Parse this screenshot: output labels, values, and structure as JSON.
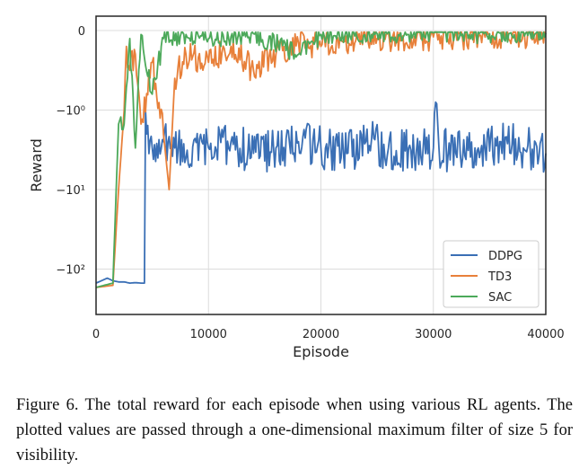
{
  "chart_data": {
    "type": "line",
    "xlabel": "Episode",
    "ylabel": "Reward",
    "xlim": [
      0,
      40000
    ],
    "y_scale": "symlog",
    "y_ticks": [
      "0",
      "−10⁰",
      "−10¹",
      "−10²"
    ],
    "x_ticks": [
      "0",
      "10000",
      "20000",
      "30000",
      "40000"
    ],
    "grid": true,
    "legend_position": "bottom-right",
    "series": [
      {
        "name": "DDPG",
        "color": "#3a6fb5",
        "x": [
          0,
          1000,
          1500,
          2000,
          2500,
          3000,
          3500,
          4000,
          4300,
          4400,
          4500,
          5000,
          5500,
          6000,
          7000,
          8000,
          10000,
          12000,
          14000,
          16000,
          18000,
          20000,
          22000,
          24000,
          26000,
          28000,
          30000,
          30200,
          30500,
          32000,
          34000,
          36000,
          38000,
          40000
        ],
        "y": [
          -150,
          -130,
          -140,
          -145,
          -145,
          -150,
          -148,
          -150,
          -150,
          -1,
          -2,
          -3,
          -4,
          -2.5,
          -3,
          -4,
          -3,
          -2.5,
          -3.5,
          -3,
          -2.5,
          -3,
          -3.5,
          -2.5,
          -3,
          -3.2,
          -3,
          -0.9,
          -3,
          -3.5,
          -3,
          -2.5,
          -3,
          -3.5
        ]
      },
      {
        "name": "TD3",
        "color": "#e8803a",
        "x": [
          0,
          1500,
          2000,
          2500,
          2700,
          3000,
          3500,
          4000,
          5000,
          6000,
          6500,
          7000,
          8000,
          10000,
          12000,
          14000,
          16000,
          18000,
          20000,
          25000,
          30000,
          35000,
          40000
        ],
        "y": [
          -170,
          -160,
          -10,
          -1,
          -0.2,
          -0.5,
          -0.3,
          -1.5,
          -0.4,
          -2,
          -10,
          -0.6,
          -0.3,
          -0.4,
          -0.2,
          -0.5,
          -0.3,
          -0.15,
          -0.2,
          -0.1,
          -0.08,
          -0.06,
          -0.05
        ]
      },
      {
        "name": "SAC",
        "color": "#4ca95a",
        "x": [
          0,
          1500,
          2000,
          2500,
          3000,
          3500,
          4000,
          5000,
          6000,
          8000,
          10000,
          14000,
          18000,
          20000,
          25000,
          30000,
          35000,
          40000
        ],
        "y": [
          -170,
          -150,
          -1.5,
          -1.5,
          -0.1,
          -3,
          -0.05,
          -0.8,
          -0.1,
          -0.05,
          -0.1,
          -0.04,
          -0.3,
          -0.05,
          -0.04,
          -0.03,
          -0.04,
          -0.03
        ]
      }
    ]
  },
  "caption": "Figure 6. The total reward for each episode when using various RL agents. The plotted values are passed through a one-dimensional maximum filter of size 5 for visibility."
}
